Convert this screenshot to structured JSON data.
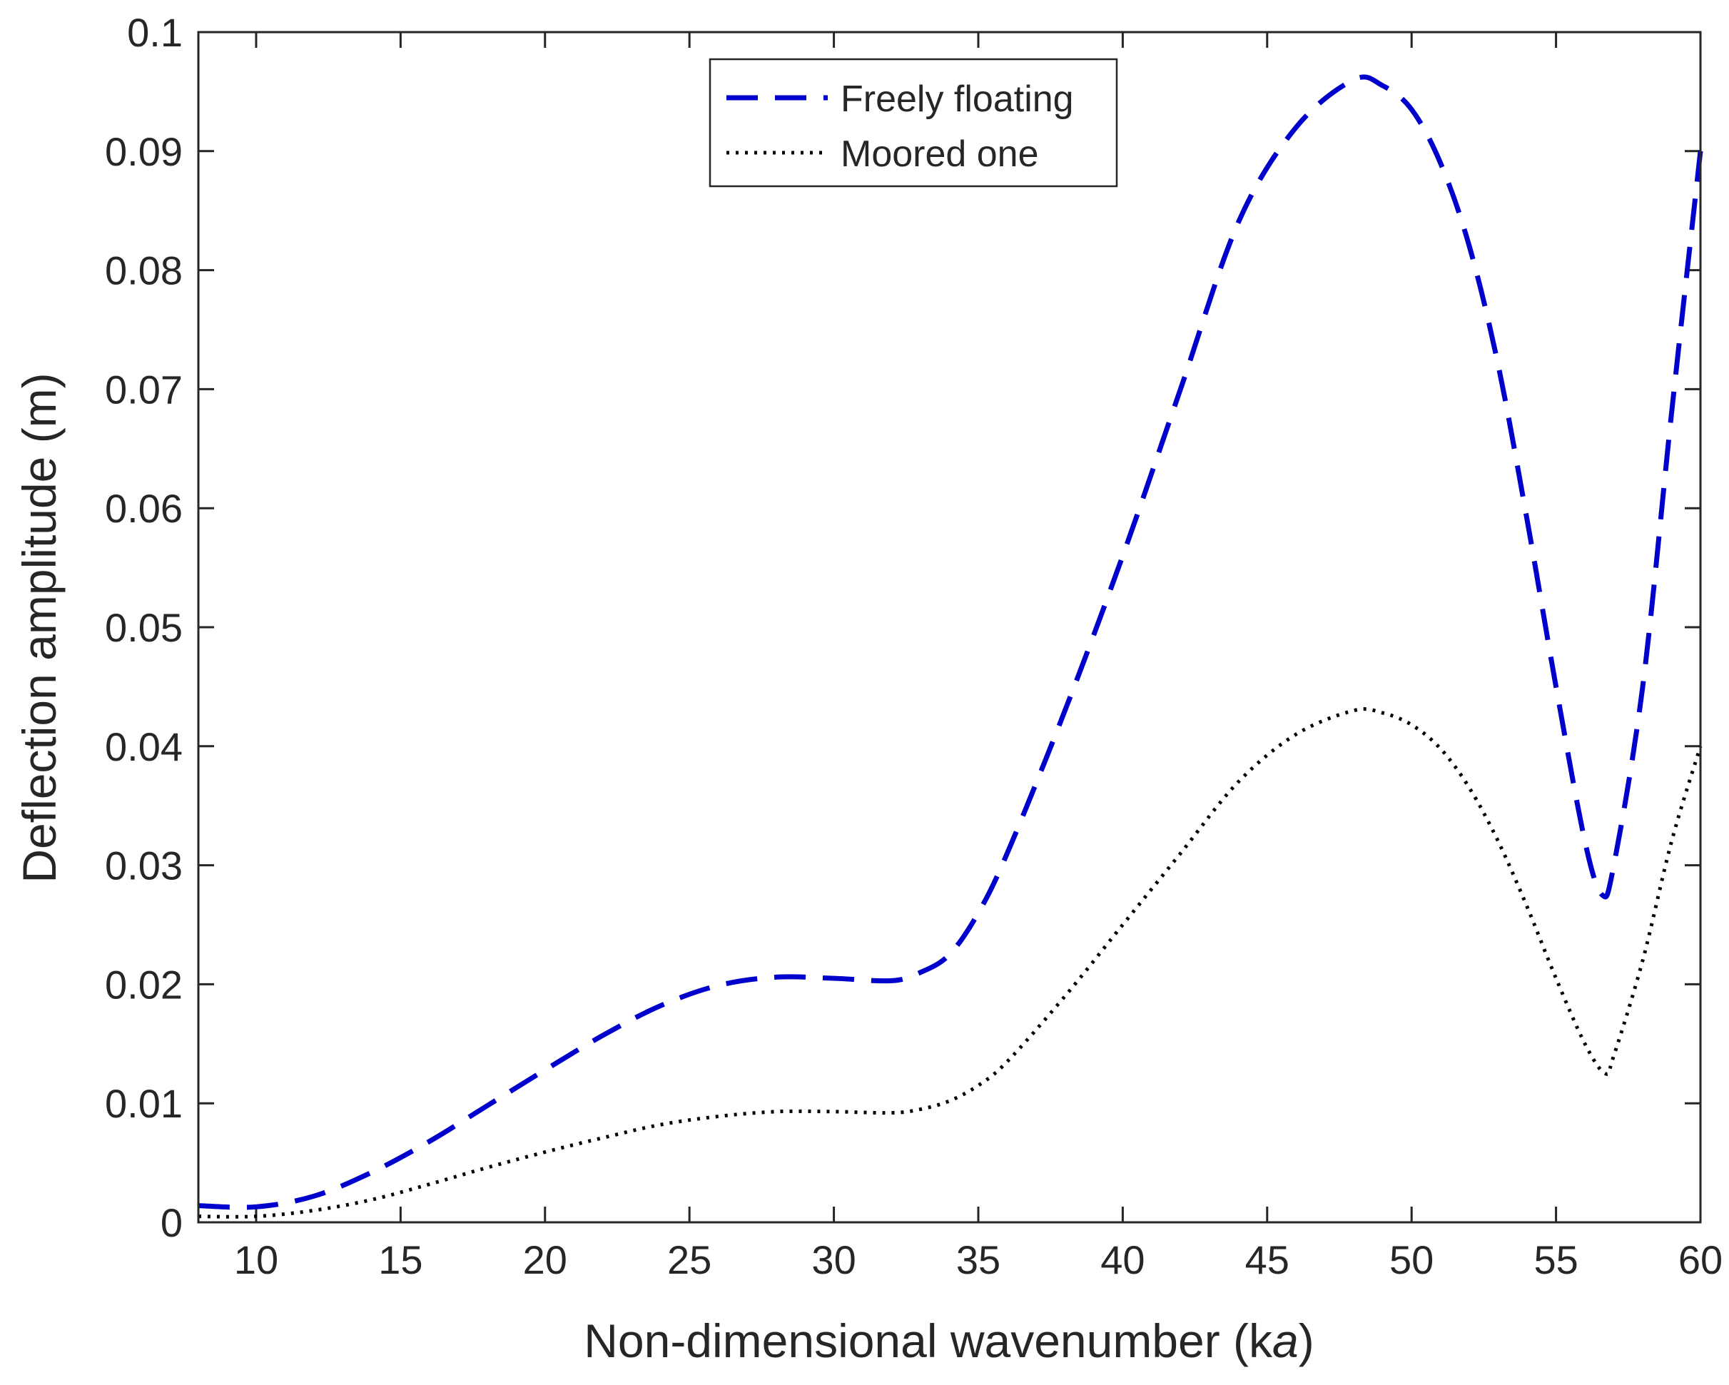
{
  "chart_data": {
    "type": "line",
    "xlabel": "Non-dimensional wavenumber (ka)",
    "xlabel_parts": [
      "Non-dimensional wavenumber (k",
      "a",
      ")"
    ],
    "ylabel": "Deflection amplitude (m)",
    "xlim": [
      8,
      60
    ],
    "ylim": [
      0,
      0.1
    ],
    "xticks": [
      10,
      15,
      20,
      25,
      30,
      35,
      40,
      45,
      50,
      55,
      60
    ],
    "yticks": [
      0,
      0.01,
      0.02,
      0.03,
      0.04,
      0.05,
      0.06,
      0.07,
      0.08,
      0.09,
      0.1
    ],
    "xtick_labels": [
      "10",
      "15",
      "20",
      "25",
      "30",
      "35",
      "40",
      "45",
      "50",
      "55",
      "60"
    ],
    "ytick_labels": [
      "0",
      "0.01",
      "0.02",
      "0.03",
      "0.04",
      "0.05",
      "0.06",
      "0.07",
      "0.08",
      "0.09",
      "0.1"
    ],
    "grid": false,
    "legend_position": "top-center",
    "series": [
      {
        "name": "Freely floating",
        "color": "#0000cc",
        "style": "dashed",
        "x": [
          8,
          10,
          12,
          14,
          16,
          18,
          20,
          22,
          24,
          26,
          28,
          30,
          32,
          33,
          34,
          35,
          36,
          38,
          40,
          42,
          44,
          46,
          48,
          49,
          50,
          51,
          52,
          53,
          54,
          55,
          56,
          56.6,
          57,
          58,
          59,
          60
        ],
        "y": [
          0.0014,
          0.0013,
          0.0022,
          0.0042,
          0.0068,
          0.0098,
          0.0128,
          0.0157,
          0.0182,
          0.0199,
          0.0206,
          0.0205,
          0.0203,
          0.021,
          0.0225,
          0.026,
          0.031,
          0.043,
          0.056,
          0.07,
          0.084,
          0.092,
          0.096,
          0.0955,
          0.0935,
          0.089,
          0.082,
          0.072,
          0.059,
          0.045,
          0.032,
          0.0275,
          0.03,
          0.045,
          0.068,
          0.09
        ]
      },
      {
        "name": "Moored one",
        "color": "#000000",
        "style": "dotted",
        "x": [
          8,
          10,
          12,
          14,
          16,
          18,
          20,
          22,
          24,
          26,
          28,
          30,
          32,
          33,
          34,
          35,
          36,
          38,
          40,
          42,
          44,
          46,
          48,
          49,
          50,
          51,
          52,
          53,
          54,
          55,
          56,
          56.7,
          57,
          58,
          59,
          60
        ],
        "y": [
          0.0005,
          0.0005,
          0.001,
          0.0019,
          0.0032,
          0.0046,
          0.0059,
          0.0071,
          0.0082,
          0.0089,
          0.0093,
          0.0093,
          0.0092,
          0.0095,
          0.0102,
          0.0115,
          0.0135,
          0.019,
          0.025,
          0.031,
          0.037,
          0.041,
          0.043,
          0.0428,
          0.0418,
          0.0398,
          0.0365,
          0.032,
          0.0265,
          0.0205,
          0.015,
          0.0125,
          0.014,
          0.022,
          0.032,
          0.04
        ]
      }
    ]
  }
}
